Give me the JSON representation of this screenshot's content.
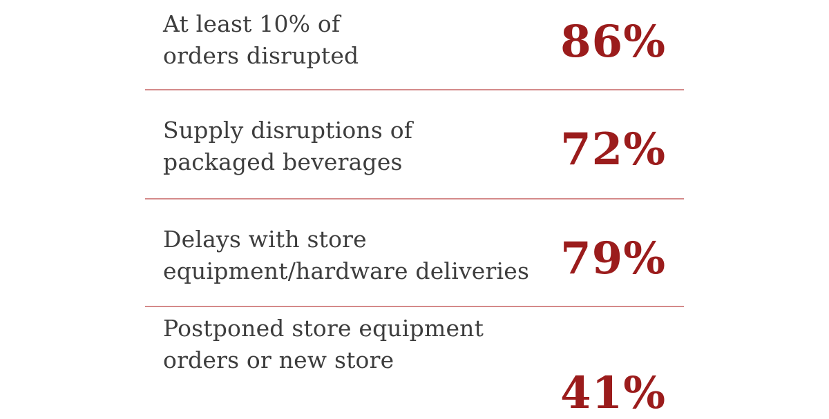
{
  "stats": [
    {
      "label_lines": [
        "At least 10% of",
        "orders disrupted"
      ],
      "value": "86%"
    },
    {
      "label_lines": [
        "Supply disruptions of",
        "packaged beverages"
      ],
      "value": "72%"
    },
    {
      "label_lines": [
        "Delays with store",
        "equipment/hardware deliveries"
      ],
      "value": "79%"
    },
    {
      "label_lines": [
        "Postponed store equipment",
        "orders or new store",
        ""
      ],
      "value": "41%"
    }
  ],
  "colors": {
    "value_text": "#9b1c1c",
    "label_text": "#3d3d3d",
    "divider": "#d48a8a",
    "background": "#ffffff"
  }
}
